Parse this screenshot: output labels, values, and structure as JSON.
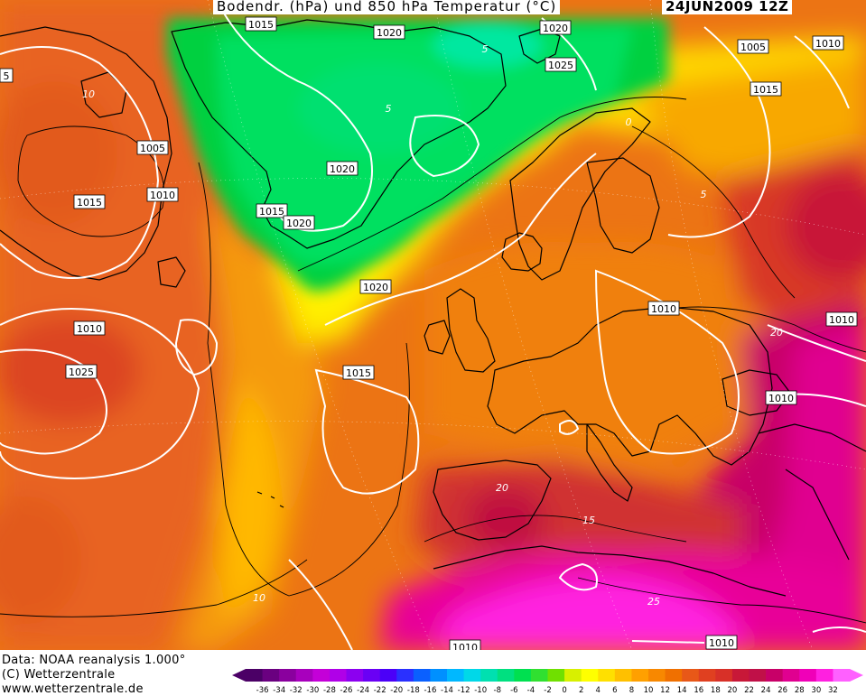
{
  "header": {
    "title": "Bodendr. (hPa) und 850 hPa Temperatur (°C)",
    "datetime": "24JUN2009 12Z"
  },
  "footer": {
    "data_source": "Data: NOAA reanalysis 1.000°",
    "copyright": "(C) Wetterzentrale",
    "website": "www.wetterzentrale.de"
  },
  "isobar_labels": [
    "1015",
    "1020",
    "1020",
    "1005",
    "1010",
    "1005",
    "1010",
    "1015",
    "1025",
    "1015",
    "1020",
    "1015",
    "1010",
    "1020",
    "1020",
    "1015",
    "1010",
    "1010",
    "1010",
    "1025",
    "1010",
    "1010",
    "5"
  ],
  "temperature_labels": [
    "10",
    "5",
    "0",
    "5",
    "20",
    "20",
    "15",
    "25",
    "10",
    "5"
  ],
  "colorbar": {
    "ticks": [
      "-36",
      "-34",
      "-32",
      "-30",
      "-28",
      "-26",
      "-24",
      "-22",
      "-20",
      "-18",
      "-16",
      "-14",
      "-12",
      "-10",
      "-8",
      "-6",
      "-4",
      "-2",
      "0",
      "2",
      "4",
      "6",
      "8",
      "10",
      "12",
      "14",
      "16",
      "18",
      "20",
      "22",
      "24",
      "26",
      "28",
      "30",
      "32"
    ],
    "colors": [
      "#4b0066",
      "#6a0080",
      "#8a009e",
      "#a800bd",
      "#c400d8",
      "#b000e8",
      "#8c00f0",
      "#6a00f5",
      "#4b00f8",
      "#2a30ff",
      "#0a60ff",
      "#0090ff",
      "#00b8ff",
      "#00d8e8",
      "#00e0b0",
      "#00e080",
      "#00e050",
      "#30e030",
      "#70e000",
      "#d8f000",
      "#ffff00",
      "#ffe000",
      "#ffc000",
      "#ffa000",
      "#f88800",
      "#f07000",
      "#e85818",
      "#e04020",
      "#d83028",
      "#c81838",
      "#c01048",
      "#c80068",
      "#e00090",
      "#f000b8",
      "#ff20e0",
      "#ff60ff"
    ]
  },
  "colors": {
    "land_outline": "#000000",
    "isobar": "#ffffff",
    "isotherm": "#000000"
  }
}
